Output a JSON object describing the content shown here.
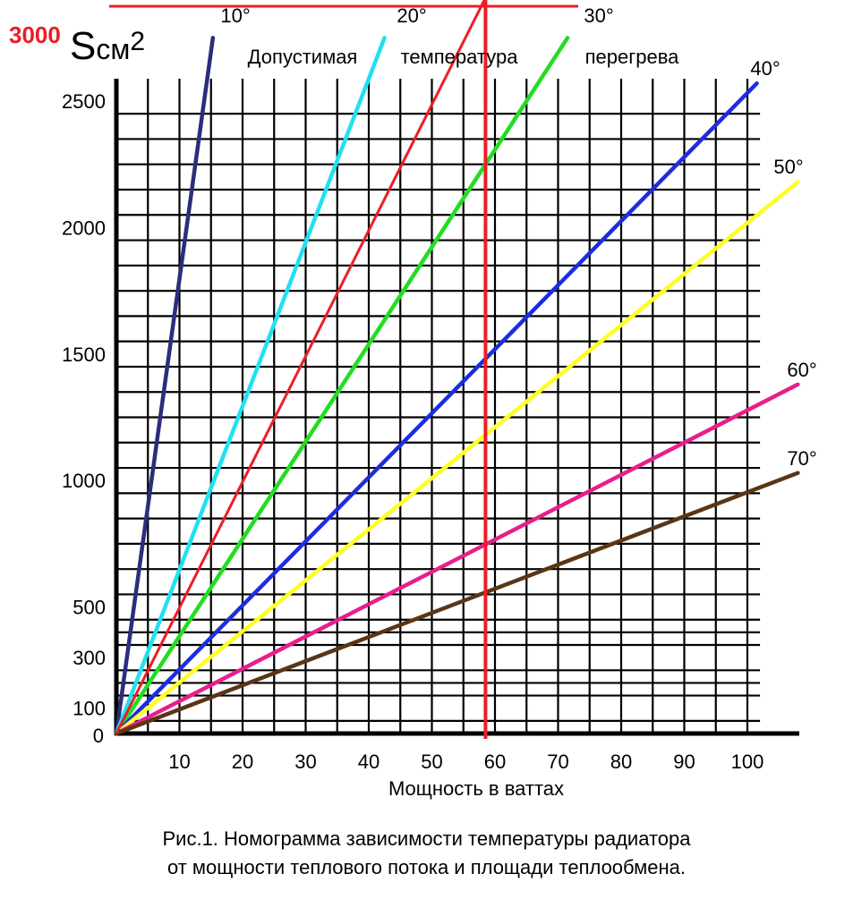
{
  "chart_data": {
    "type": "line",
    "title": "Допустимая температура перегрева",
    "xlabel": "Мощность в ваттах",
    "ylabel_letter": "S",
    "ylabel_unit": "см",
    "ylabel_power": "2",
    "xlim": [
      0,
      108
    ],
    "ylim": [
      0,
      2500
    ],
    "x_ticks": [
      10,
      20,
      30,
      40,
      50,
      60,
      70,
      80,
      90,
      100
    ],
    "y_ticks": [
      0,
      100,
      300,
      500,
      1000,
      1500,
      2000,
      2500
    ],
    "grid": true,
    "series": [
      {
        "name": "10°",
        "color": "#2b2d7c",
        "points": [
          [
            0,
            0
          ],
          [
            15.3,
            2750
          ]
        ]
      },
      {
        "name": "20°",
        "color": "#22e0f0",
        "points": [
          [
            0,
            0
          ],
          [
            42.5,
            2750
          ]
        ]
      },
      {
        "name": "30°",
        "color": "#22dd22",
        "points": [
          [
            0,
            0
          ],
          [
            71.5,
            2750
          ]
        ]
      },
      {
        "name": "40°",
        "color": "#1a2ee0",
        "points": [
          [
            0,
            0
          ],
          [
            101.5,
            2570
          ]
        ]
      },
      {
        "name": "50°",
        "color": "#ffff22",
        "points": [
          [
            0,
            0
          ],
          [
            108,
            2180
          ]
        ]
      },
      {
        "name": "60°",
        "color": "#e81e8c",
        "points": [
          [
            0,
            0
          ],
          [
            108,
            1380
          ]
        ]
      },
      {
        "name": "70°",
        "color": "#5a3515",
        "points": [
          [
            0,
            0
          ],
          [
            108,
            1030
          ]
        ]
      }
    ],
    "annotations": {
      "red_value_label": "3000",
      "red_color": "#ee1c25",
      "red_line": {
        "points": [
          [
            0,
            0
          ],
          [
            58.5,
            2880
          ]
        ]
      },
      "red_vertical_x": 58.5,
      "red_top_line_y": 2880
    }
  },
  "caption": {
    "line1": "Рис.1. Номограмма зависимости температуры радиатора",
    "line2": "от мощности теплового потока и площади теплообмена."
  }
}
